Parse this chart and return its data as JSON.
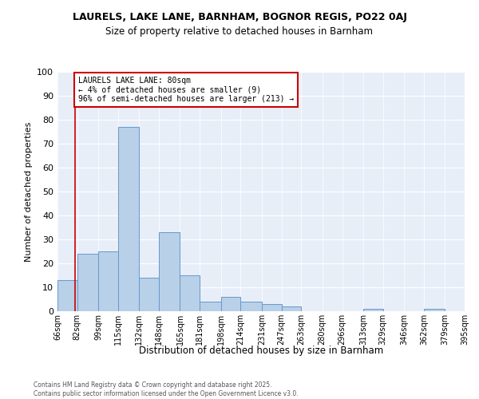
{
  "title": "LAURELS, LAKE LANE, BARNHAM, BOGNOR REGIS, PO22 0AJ",
  "subtitle": "Size of property relative to detached houses in Barnham",
  "xlabel": "Distribution of detached houses by size in Barnham",
  "ylabel": "Number of detached properties",
  "bins": [
    66,
    82,
    99,
    115,
    132,
    148,
    165,
    181,
    198,
    214,
    231,
    247,
    263,
    280,
    296,
    313,
    329,
    346,
    362,
    379,
    395
  ],
  "counts": [
    13,
    24,
    25,
    77,
    14,
    33,
    15,
    4,
    6,
    4,
    3,
    2,
    0,
    0,
    0,
    1,
    0,
    0,
    1,
    0
  ],
  "bar_color": "#b8d0e8",
  "bar_edge_color": "#6699cc",
  "property_line_x": 80,
  "property_line_color": "#cc0000",
  "annotation_text": "LAURELS LAKE LANE: 80sqm\n← 4% of detached houses are smaller (9)\n96% of semi-detached houses are larger (213) →",
  "annotation_box_color": "#cc0000",
  "ylim": [
    0,
    100
  ],
  "yticks": [
    0,
    10,
    20,
    30,
    40,
    50,
    60,
    70,
    80,
    90,
    100
  ],
  "bg_color": "#e8eef8",
  "footer_line1": "Contains HM Land Registry data © Crown copyright and database right 2025.",
  "footer_line2": "Contains public sector information licensed under the Open Government Licence v3.0.",
  "tick_labels": [
    "66sqm",
    "82sqm",
    "99sqm",
    "115sqm",
    "132sqm",
    "148sqm",
    "165sqm",
    "181sqm",
    "198sqm",
    "214sqm",
    "231sqm",
    "247sqm",
    "263sqm",
    "280sqm",
    "296sqm",
    "313sqm",
    "329sqm",
    "346sqm",
    "362sqm",
    "379sqm",
    "395sqm"
  ]
}
